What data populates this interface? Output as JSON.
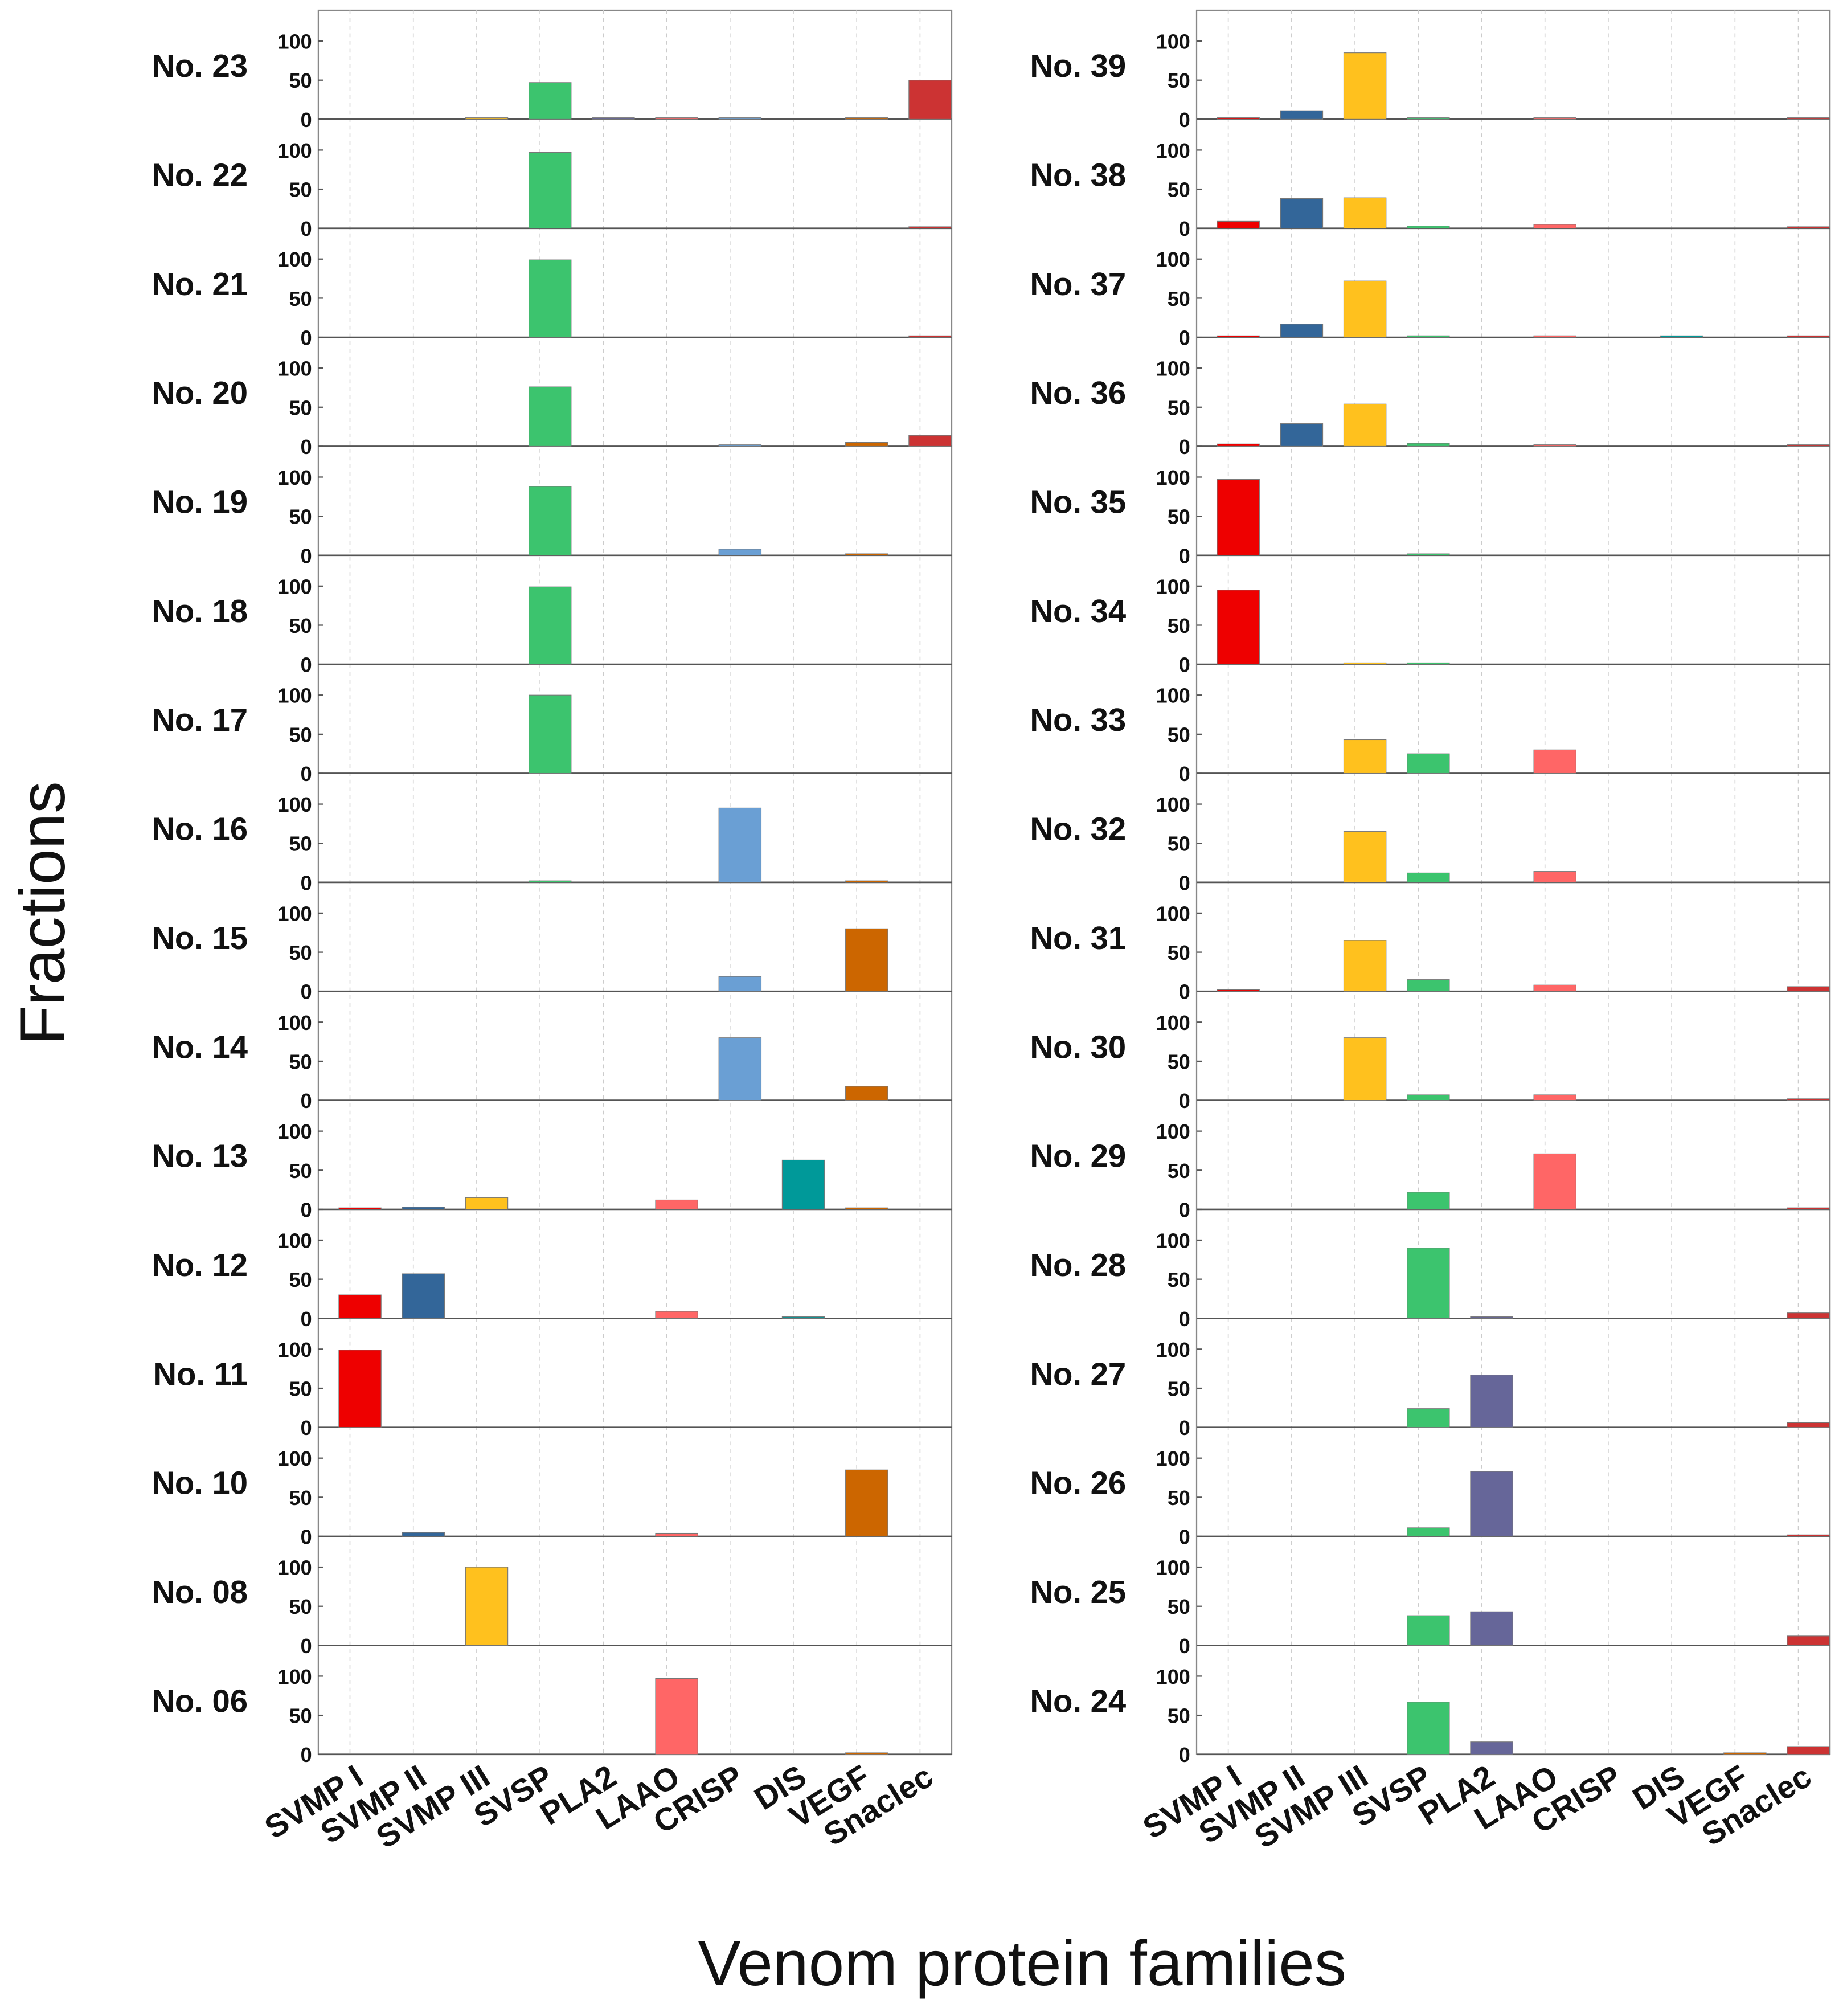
{
  "chart_data": {
    "type": "bar",
    "title": "",
    "xlabel": "Venom protein families",
    "ylabel": "Fractions",
    "ylim": [
      0,
      100
    ],
    "yticks": [
      "0",
      "50",
      "100"
    ],
    "grid": true,
    "categories": [
      "SVMP I",
      "SVMP II",
      "SVMP III",
      "SVSP",
      "PLA2",
      "LAAO",
      "CRISP",
      "DIS",
      "VEGF",
      "Snaclec"
    ],
    "colors": [
      "#ee0000",
      "#336699",
      "#ffc11e",
      "#3cc46e",
      "#666699",
      "#ff6666",
      "#6a9fd4",
      "#009999",
      "#cc6600",
      "#cc3333"
    ],
    "columns": [
      {
        "panels": [
          {
            "name": "No. 23",
            "values": [
              0,
              0,
              0.5,
              47,
              1,
              0.5,
              0.5,
              0,
              1,
              50
            ]
          },
          {
            "name": "No. 22",
            "values": [
              0,
              0,
              0,
              97,
              0,
              0,
              0,
              0,
              0,
              2
            ]
          },
          {
            "name": "No. 21",
            "values": [
              0,
              0,
              0,
              99,
              0,
              0,
              0,
              0,
              0,
              0.5
            ]
          },
          {
            "name": "No. 20",
            "values": [
              0,
              0,
              0,
              76,
              0,
              0,
              1,
              0,
              5,
              14
            ]
          },
          {
            "name": "No. 19",
            "values": [
              0,
              0,
              0,
              88,
              0,
              0,
              8,
              0,
              2,
              0
            ]
          },
          {
            "name": "No. 18",
            "values": [
              0,
              0,
              0,
              99,
              0,
              0,
              0,
              0,
              0,
              0
            ]
          },
          {
            "name": "No. 17",
            "values": [
              0,
              0,
              0,
              100,
              0,
              0,
              0,
              0,
              0,
              0
            ]
          },
          {
            "name": "No. 16",
            "values": [
              0,
              0,
              0,
              1,
              0,
              0,
              95,
              0,
              1,
              0
            ]
          },
          {
            "name": "No. 15",
            "values": [
              0,
              0,
              0,
              0,
              0,
              0,
              19,
              0,
              80,
              0
            ]
          },
          {
            "name": "No. 14",
            "values": [
              0,
              0,
              0,
              0,
              0,
              0,
              80,
              0,
              18,
              0
            ]
          },
          {
            "name": "No. 13",
            "values": [
              1,
              3,
              15,
              0,
              0,
              12,
              0,
              63,
              1,
              0
            ]
          },
          {
            "name": "No. 12",
            "values": [
              30,
              57,
              0,
              0,
              0,
              9,
              0,
              0.5,
              0,
              0
            ]
          },
          {
            "name": "No. 11",
            "values": [
              99,
              0,
              0,
              0,
              0,
              0,
              0,
              0,
              0,
              0
            ]
          },
          {
            "name": "No. 10",
            "values": [
              0,
              5,
              0,
              0,
              0,
              4,
              0,
              0,
              85,
              0
            ]
          },
          {
            "name": "No. 08",
            "values": [
              0,
              0,
              100,
              0,
              0,
              0,
              0,
              0,
              0,
              0
            ]
          },
          {
            "name": "No. 06",
            "values": [
              0,
              0,
              0,
              0,
              0,
              97,
              0,
              0,
              2,
              0
            ]
          }
        ]
      },
      {
        "panels": [
          {
            "name": "No. 39",
            "values": [
              1,
              11,
              85,
              1,
              0,
              1,
              0,
              0,
              0,
              0.5
            ]
          },
          {
            "name": "No. 38",
            "values": [
              9,
              38,
              39,
              3,
              0,
              5,
              0,
              0,
              0,
              2
            ]
          },
          {
            "name": "No. 37",
            "values": [
              1,
              17,
              72,
              2,
              0,
              2,
              0,
              0.5,
              0,
              0.5
            ]
          },
          {
            "name": "No. 36",
            "values": [
              3,
              29,
              54,
              4,
              0,
              2,
              0,
              0,
              0,
              2
            ]
          },
          {
            "name": "No. 35",
            "values": [
              97,
              0,
              0,
              1,
              0,
              0,
              0,
              0,
              0,
              0
            ]
          },
          {
            "name": "No. 34",
            "values": [
              95,
              0,
              1,
              1,
              0,
              0,
              0,
              0,
              0,
              0
            ]
          },
          {
            "name": "No. 33",
            "values": [
              0,
              0,
              43,
              25,
              0,
              30,
              0,
              0,
              0,
              0
            ]
          },
          {
            "name": "No. 32",
            "values": [
              0,
              0,
              65,
              12,
              0,
              14,
              0,
              0,
              0,
              0
            ]
          },
          {
            "name": "No. 31",
            "values": [
              2,
              0,
              65,
              15,
              0,
              8,
              0,
              0,
              0,
              6
            ]
          },
          {
            "name": "No. 30",
            "values": [
              0,
              0,
              80,
              7,
              0,
              7,
              0,
              0,
              0,
              1
            ]
          },
          {
            "name": "No. 29",
            "values": [
              0,
              0,
              0,
              22,
              0,
              71,
              0,
              0,
              0,
              2
            ]
          },
          {
            "name": "No. 28",
            "values": [
              0,
              0,
              0,
              90,
              0.5,
              0,
              0,
              0,
              0,
              7
            ]
          },
          {
            "name": "No. 27",
            "values": [
              0,
              0,
              0,
              24,
              67,
              0,
              0,
              0,
              0,
              6
            ]
          },
          {
            "name": "No. 26",
            "values": [
              0,
              0,
              0,
              11,
              83,
              0,
              0,
              0,
              0,
              1
            ]
          },
          {
            "name": "No. 25",
            "values": [
              0,
              0,
              0,
              38,
              43,
              0,
              0,
              0,
              0,
              12
            ]
          },
          {
            "name": "No. 24",
            "values": [
              0,
              0,
              0,
              67,
              16,
              0,
              0,
              0,
              0.5,
              10
            ]
          }
        ]
      }
    ]
  }
}
